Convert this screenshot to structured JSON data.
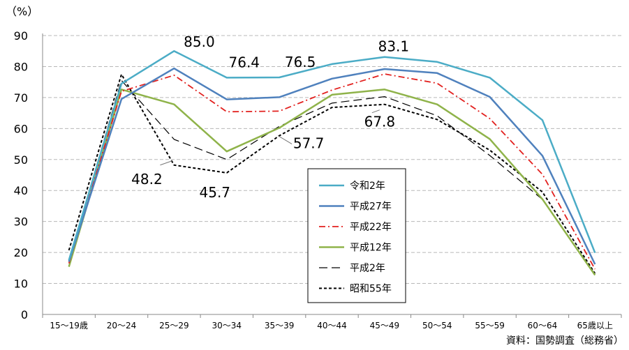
{
  "chart_data": {
    "type": "line",
    "title": "",
    "ylabel_unit": "（%）",
    "xlabel": "",
    "ylabel": "",
    "ylim": [
      0,
      90
    ],
    "yticks": [
      0,
      10,
      20,
      30,
      40,
      50,
      60,
      70,
      80,
      90
    ],
    "categories": [
      "15～19歳",
      "20～24",
      "25～29",
      "30～34",
      "35～39",
      "40～44",
      "45～49",
      "50～54",
      "55～59",
      "60～64",
      "65歳以上"
    ],
    "grid": "horizontal dashed",
    "legend_position": "center-bottom (inside plot)",
    "series": [
      {
        "name": "令和2年",
        "color": "#4bacc6",
        "dash": "solid",
        "values": [
          17.5,
          74.5,
          85.0,
          76.4,
          76.5,
          80.8,
          83.1,
          81.5,
          76.4,
          62.7,
          19.9
        ]
      },
      {
        "name": "平成27年",
        "color": "#4f81bd",
        "dash": "solid",
        "values": [
          17.0,
          69.5,
          79.4,
          69.4,
          70.1,
          76.1,
          79.2,
          77.9,
          70.2,
          51.2,
          16.2
        ]
      },
      {
        "name": "平成22年",
        "color": "#e2201e",
        "dash": "dashdot",
        "values": [
          16.5,
          72.0,
          77.2,
          65.4,
          65.6,
          72.4,
          77.6,
          74.6,
          63.2,
          45.2,
          14.6
        ]
      },
      {
        "name": "平成12年",
        "color": "#8fb34a",
        "dash": "solid",
        "values": [
          15.4,
          72.6,
          67.8,
          52.6,
          60.2,
          70.9,
          72.6,
          67.8,
          56.6,
          37.2,
          12.7
        ]
      },
      {
        "name": "平成2年",
        "color": "#000000",
        "dash": "longdash",
        "values": [
          17.3,
          75.5,
          56.5,
          50.0,
          60.7,
          68.2,
          70.3,
          64.1,
          51.3,
          37.1,
          13.0
        ]
      },
      {
        "name": "昭和55年",
        "color": "#000000",
        "dash": "shortdash",
        "values": [
          20.7,
          77.5,
          48.2,
          45.7,
          57.7,
          66.8,
          67.8,
          62.9,
          53.0,
          39.5,
          13.2
        ]
      }
    ],
    "annotations": [
      {
        "text": "85.0"
      },
      {
        "text": "76.4"
      },
      {
        "text": "76.5"
      },
      {
        "text": "83.1"
      },
      {
        "text": "48.2"
      },
      {
        "text": "45.7"
      },
      {
        "text": "57.7"
      },
      {
        "text": "67.8"
      }
    ],
    "source": "資料：国勢調査（総務省）"
  }
}
